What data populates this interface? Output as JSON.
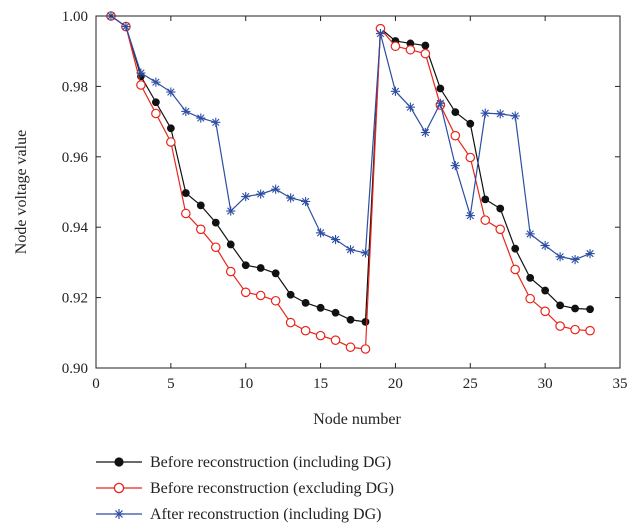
{
  "chart_data": {
    "type": "line",
    "title": "",
    "xlabel": "Node number",
    "ylabel": "Node voltage value",
    "xlim": [
      0,
      35
    ],
    "ylim": [
      0.9,
      1.0
    ],
    "x_ticks": [
      "0",
      "5",
      "10",
      "15",
      "20",
      "25",
      "30",
      "35"
    ],
    "y_ticks": [
      "0.90",
      "0.92",
      "0.94",
      "0.96",
      "0.98",
      "1.00"
    ],
    "grid": false,
    "legend_position": "bottom",
    "x": [
      1,
      2,
      3,
      4,
      5,
      6,
      7,
      8,
      9,
      10,
      11,
      12,
      13,
      14,
      15,
      16,
      17,
      18,
      19,
      20,
      21,
      22,
      23,
      24,
      25,
      26,
      27,
      28,
      29,
      30,
      31,
      32,
      33
    ],
    "series": [
      {
        "name": "Before reconstruction (including DG)",
        "color": "#111111",
        "marker": "filled-circle",
        "values": [
          1.0,
          0.997,
          0.9829,
          0.9755,
          0.9681,
          0.9497,
          0.9462,
          0.9413,
          0.9351,
          0.9292,
          0.9284,
          0.9269,
          0.9208,
          0.9185,
          0.9171,
          0.9157,
          0.9137,
          0.9131,
          0.9965,
          0.9929,
          0.9922,
          0.9916,
          0.9794,
          0.9727,
          0.9694,
          0.9479,
          0.9453,
          0.9339,
          0.9256,
          0.922,
          0.9178,
          0.9169,
          0.9167
        ]
      },
      {
        "name": "Before reconstruction (excluding DG)",
        "color": "#e8261c",
        "marker": "hollow-circle",
        "values": [
          1.0,
          0.997,
          0.9804,
          0.9723,
          0.9642,
          0.9439,
          0.9394,
          0.9343,
          0.9274,
          0.9215,
          0.9206,
          0.9191,
          0.9129,
          0.9106,
          0.9092,
          0.9079,
          0.9059,
          0.9054,
          0.9964,
          0.9914,
          0.9904,
          0.9893,
          0.9747,
          0.966,
          0.9598,
          0.942,
          0.9394,
          0.928,
          0.9197,
          0.9161,
          0.9119,
          0.9109,
          0.9106
        ]
      },
      {
        "name": "After reconstruction (including DG)",
        "color": "#2c4ea3",
        "marker": "asterisk",
        "values": [
          1.0,
          0.997,
          0.9838,
          0.9812,
          0.9784,
          0.9729,
          0.971,
          0.9698,
          0.9446,
          0.9487,
          0.9494,
          0.9508,
          0.9483,
          0.9473,
          0.9384,
          0.9365,
          0.9336,
          0.9327,
          0.995,
          0.9786,
          0.9741,
          0.9669,
          0.9752,
          0.9575,
          0.9433,
          0.9724,
          0.9722,
          0.9716,
          0.9381,
          0.9348,
          0.9316,
          0.9308,
          0.9325
        ]
      }
    ]
  }
}
